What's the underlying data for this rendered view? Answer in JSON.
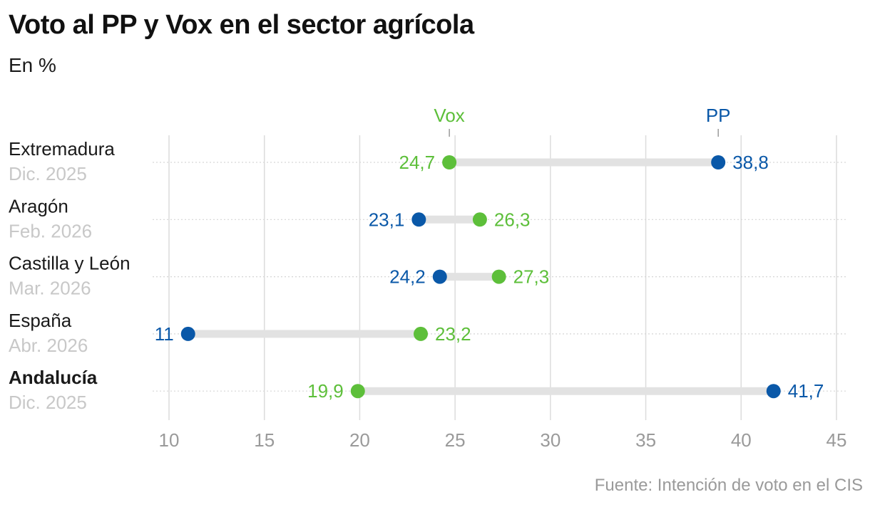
{
  "header": {
    "title": "Voto al PP y Vox en el sector agrícola",
    "subtitle": "En %"
  },
  "footer": {
    "source": "Fuente: Intención de voto en el CIS"
  },
  "colors": {
    "pp": "#0a58a8",
    "vox": "#5dbf3a",
    "connector": "#e2e2e2",
    "grid": "#dcdcdc",
    "tick_label": "#9a9a9a",
    "date_label": "#c8c8c8"
  },
  "chart_data": {
    "type": "dot-range",
    "xlim": [
      10,
      45
    ],
    "x_ticks": [
      "10",
      "15",
      "20",
      "25",
      "30",
      "35",
      "40",
      "45"
    ],
    "x_tick_values": [
      10,
      15,
      20,
      25,
      30,
      35,
      40,
      45
    ],
    "grid": true,
    "legend": [
      {
        "name": "Vox",
        "key": "vox"
      },
      {
        "name": "PP",
        "key": "pp"
      }
    ],
    "categories": [
      {
        "region": "Extremadura",
        "date": "Dic. 2025",
        "highlight": false,
        "pp": 38.8,
        "vox": 24.7,
        "pp_label": "38,8",
        "vox_label": "24,7"
      },
      {
        "region": "Aragón",
        "date": "Feb. 2026",
        "highlight": false,
        "pp": 23.1,
        "vox": 26.3,
        "pp_label": "23,1",
        "vox_label": "26,3"
      },
      {
        "region": "Castilla y León",
        "date": "Mar. 2026",
        "highlight": false,
        "pp": 24.2,
        "vox": 27.3,
        "pp_label": "24,2",
        "vox_label": "27,3"
      },
      {
        "region": "España",
        "date": "Abr. 2026",
        "highlight": false,
        "pp": 11,
        "vox": 23.2,
        "pp_label": "11",
        "vox_label": "23,2"
      },
      {
        "region": "Andalucía",
        "date": "Dic. 2025",
        "highlight": true,
        "pp": 41.7,
        "vox": 19.9,
        "pp_label": "41,7",
        "vox_label": "19,9"
      }
    ]
  }
}
